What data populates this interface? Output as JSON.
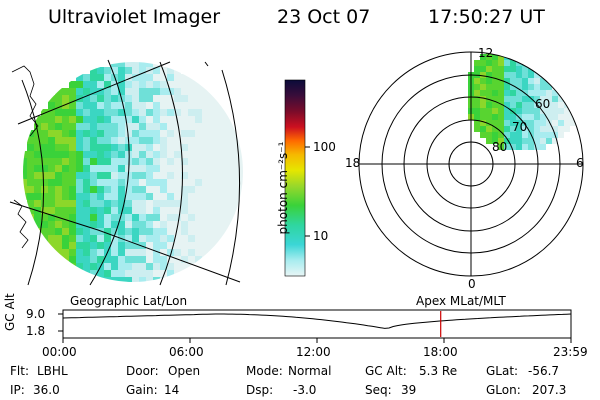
{
  "header": {
    "instrument": "Ultraviolet Imager",
    "date": "23 Oct 07",
    "time": "17:50:27 UT"
  },
  "colorbar": {
    "unit_label": "photon cm⁻²s⁻¹",
    "ticks": [
      "100",
      "10"
    ],
    "colors": [
      "#0b0b3a",
      "#3a0d3a",
      "#7a0c2a",
      "#cc1020",
      "#ff6a00",
      "#f6b800",
      "#e6e600",
      "#9ad82a",
      "#3ad23a",
      "#2fd6a0",
      "#3bd6d6",
      "#a8ecef",
      "#e8f6f6"
    ]
  },
  "polar_plot": {
    "mlt_labels": {
      "top": "12",
      "left": "18",
      "right": "6",
      "bottom": "0"
    },
    "lat_labels": [
      "60",
      "70",
      "80"
    ]
  },
  "panel_labels": {
    "left": "Geographic Lat/Lon",
    "right": "Apex MLat/MLT"
  },
  "altitude_timeline": {
    "ylabel": "GC Alt",
    "yticks": [
      "9.0",
      "1.8"
    ],
    "xticks": [
      "00:00",
      "06:00",
      "12:00",
      "18:00",
      "23:59"
    ],
    "marker_time": "17:50",
    "marker_color": "#cc0000"
  },
  "status": {
    "flt_label": "Flt:",
    "flt_value": "LBHL",
    "ip_label": "IP:",
    "ip_value": "36.0",
    "door_label": "Door:",
    "door_value": "Open",
    "gain_label": "Gain:",
    "gain_value": "14",
    "mode_label": "Mode:",
    "mode_value": "Normal",
    "dsp_label": "Dsp:",
    "dsp_value": "-3.0",
    "gcalt_label": "GC Alt:",
    "gcalt_value": "5.3 Re",
    "seq_label": "Seq:",
    "seq_value": "39",
    "glat_label": "GLat:",
    "glat_value": "-56.7",
    "glon_label": "GLon:",
    "glon_value": "207.3"
  }
}
